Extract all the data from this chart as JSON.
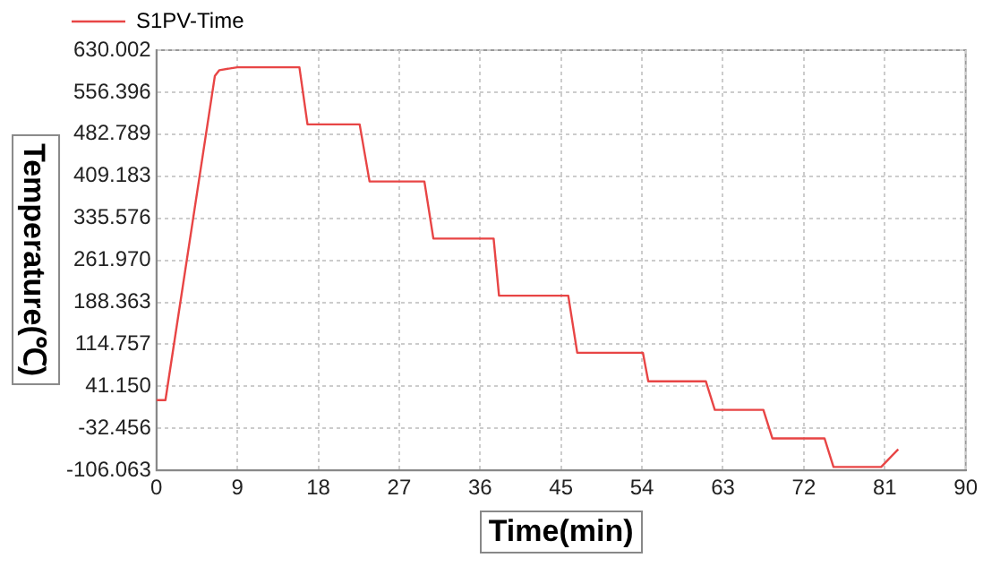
{
  "chart_data": {
    "type": "line",
    "xlabel": "Time(min)",
    "ylabel": "Temperature(℃)",
    "xlim": [
      0,
      90
    ],
    "xticks": [
      0,
      9,
      18,
      27,
      36,
      45,
      54,
      63,
      72,
      81,
      90
    ],
    "ylim": [
      -106.063,
      630.002
    ],
    "yticks": [
      -106.063,
      -32.456,
      {
        "value": 41.15,
        "label": "41.150"
      },
      114.757,
      188.363,
      {
        "value": 261.97,
        "label": "261.970"
      },
      335.576,
      409.183,
      482.789,
      556.396,
      630.002
    ],
    "grid": true,
    "legend": "top left",
    "marker": "none",
    "line_style": "solid",
    "series": [
      {
        "name": "S1PV-Time",
        "color": "#e84545",
        "x": [
          0,
          1,
          6.5,
          7,
          9,
          15.9,
          16.8,
          22.6,
          23.7,
          29.8,
          30.8,
          37.5,
          38.1,
          45.8,
          46.8,
          54.1,
          54.7,
          61.1,
          62.1,
          67.5,
          68.5,
          74.3,
          75.3,
          80.6,
          82.5
        ],
        "values": [
          17,
          17,
          585,
          595,
          600,
          600,
          500,
          500,
          400,
          400,
          300,
          300,
          200,
          200,
          100,
          100,
          50,
          50,
          0,
          0,
          -50,
          -50,
          -100,
          -100,
          -69
        ]
      }
    ]
  }
}
